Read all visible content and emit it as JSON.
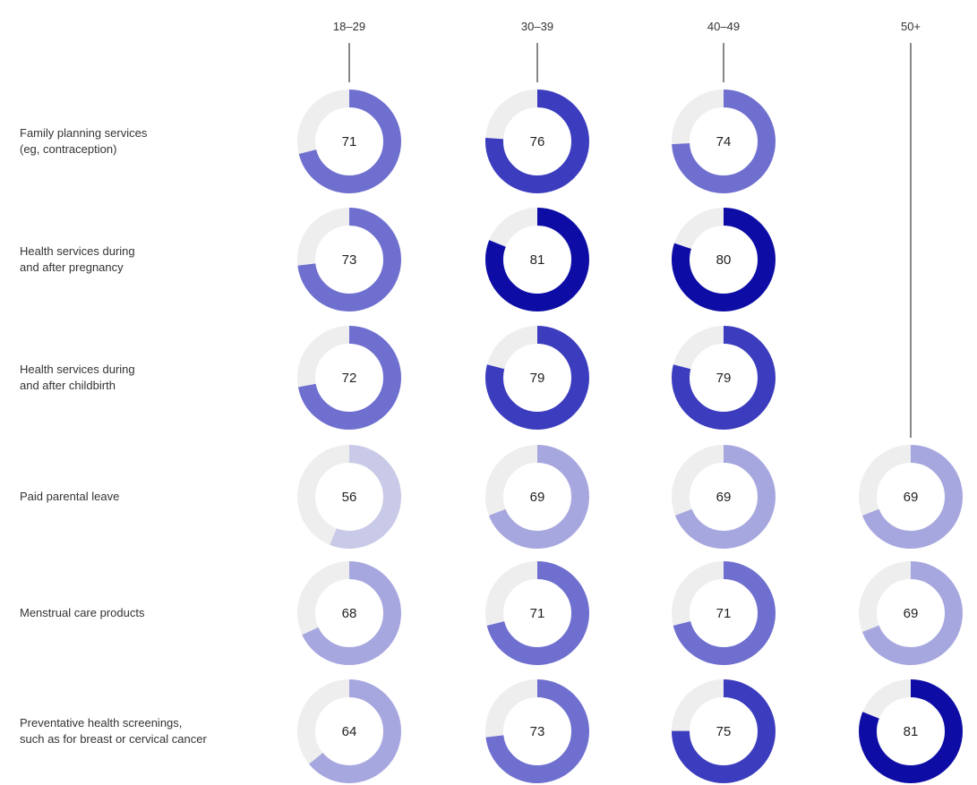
{
  "chart_data": {
    "type": "donut-grid",
    "columns": [
      "18–29",
      "30–39",
      "40–49",
      "50+"
    ],
    "rows": [
      {
        "label_lines": [
          "Family planning services",
          "(eg, contraception)"
        ],
        "values": [
          71,
          76,
          74,
          null
        ]
      },
      {
        "label_lines": [
          "Health services during",
          "and after pregnancy"
        ],
        "values": [
          73,
          81,
          80,
          null
        ]
      },
      {
        "label_lines": [
          "Health services during",
          "and after childbirth"
        ],
        "values": [
          72,
          79,
          79,
          null
        ]
      },
      {
        "label_lines": [
          "Paid parental leave"
        ],
        "values": [
          56,
          69,
          69,
          69
        ]
      },
      {
        "label_lines": [
          "Menstrual care products"
        ],
        "values": [
          68,
          71,
          71,
          69
        ]
      },
      {
        "label_lines": [
          "Preventative health screenings,",
          "such as for breast or cervical cancer"
        ],
        "values": [
          64,
          73,
          75,
          81
        ]
      }
    ],
    "ring_max": 100,
    "colors": {
      "track": "#eeeeee",
      "scale": [
        {
          "min": 0,
          "color": "#c9c9e8"
        },
        {
          "min": 60,
          "color": "#a7a7e0"
        },
        {
          "min": 70,
          "color": "#6f6fd0"
        },
        {
          "min": 75,
          "color": "#3c3cbf"
        },
        {
          "min": 80,
          "color": "#0d0da6"
        }
      ]
    }
  }
}
